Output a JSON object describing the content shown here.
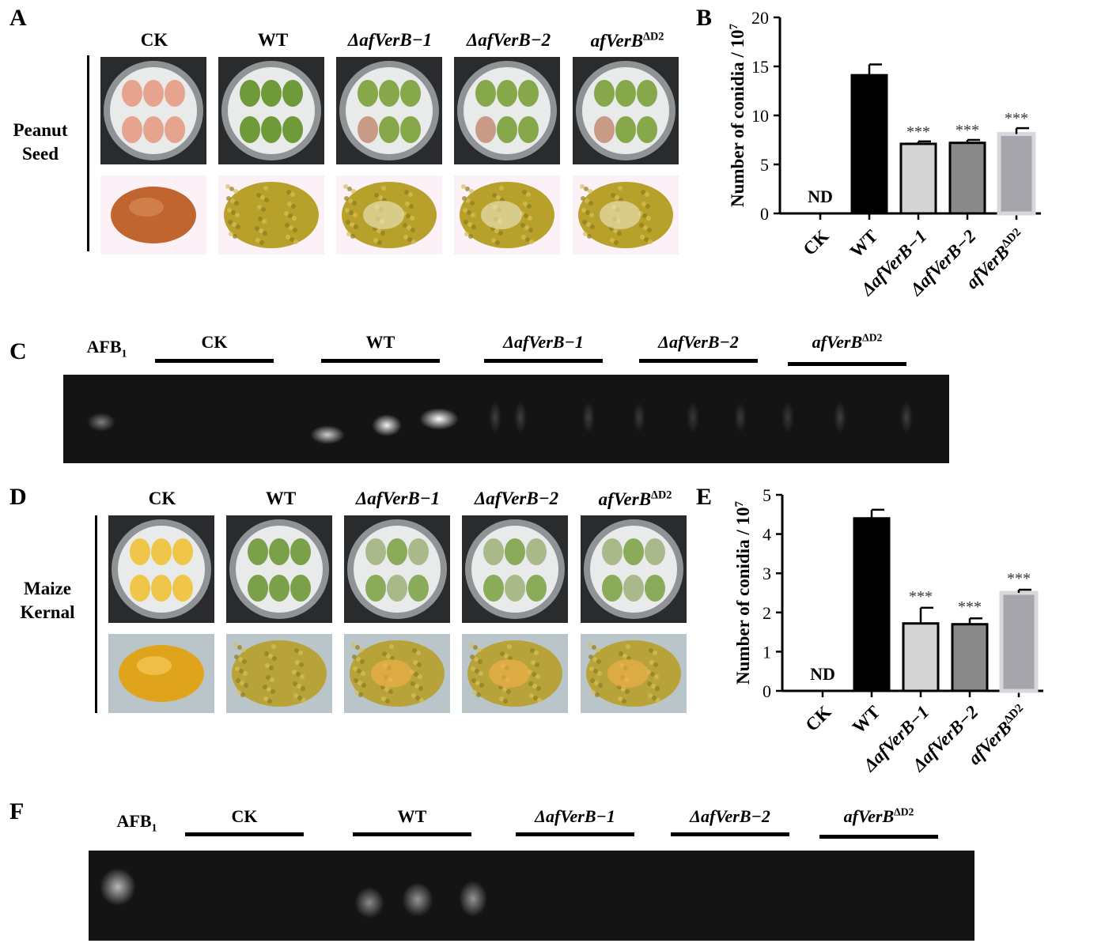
{
  "panels": {
    "a": "A",
    "b": "B",
    "c": "C",
    "d": "D",
    "e": "E",
    "f": "F"
  },
  "strains": [
    "CK",
    "WT",
    "ΔafVerB−1",
    "ΔafVerB−2",
    "afVerBΔD2"
  ],
  "rows": {
    "peanut": [
      "Peanut",
      "Seed"
    ],
    "maize": [
      "Maize",
      "Kernal"
    ]
  },
  "tlc": {
    "standard_label": "AFB1",
    "standard_main": "AFB",
    "standard_sub": "1"
  },
  "colors": {
    "ck_bar": "#ffffff",
    "wt_bar": "#000000",
    "mut1_bar": "#d4d4d4",
    "mut2_bar": "#8a8a8a",
    "comp_bar": "#a7a5ac",
    "peanut_fungus": "#b8a12a",
    "maize_fungus": "#b7a33a",
    "plate_mycelium": "#6f9a3a"
  },
  "chart_data": [
    {
      "panel": "B",
      "type": "bar",
      "categories": [
        "CK",
        "WT",
        "ΔafVerB−1",
        "ΔafVerB−2",
        "afVerBΔD2"
      ],
      "values": [
        0,
        14.1,
        7.1,
        7.2,
        8.1
      ],
      "errors": [
        0,
        1.1,
        0.25,
        0.3,
        0.6
      ],
      "annotations": [
        "ND",
        "",
        "***",
        "***",
        "***"
      ],
      "ylabel": "Number of conidia / 10^7",
      "ylim": [
        0,
        20
      ],
      "yticks": [
        0,
        5,
        10,
        15,
        20
      ]
    },
    {
      "panel": "E",
      "type": "bar",
      "categories": [
        "CK",
        "WT",
        "ΔafVerB−1",
        "ΔafVerB−2",
        "afVerBΔD2"
      ],
      "values": [
        0,
        4.4,
        1.72,
        1.7,
        2.5
      ],
      "errors": [
        0,
        0.22,
        0.4,
        0.15,
        0.08
      ],
      "annotations": [
        "ND",
        "",
        "***",
        "***",
        "***"
      ],
      "ylabel": "Number of conidia / 10^7",
      "ylim": [
        0,
        5
      ],
      "yticks": [
        0,
        1,
        2,
        3,
        4,
        5
      ]
    }
  ]
}
